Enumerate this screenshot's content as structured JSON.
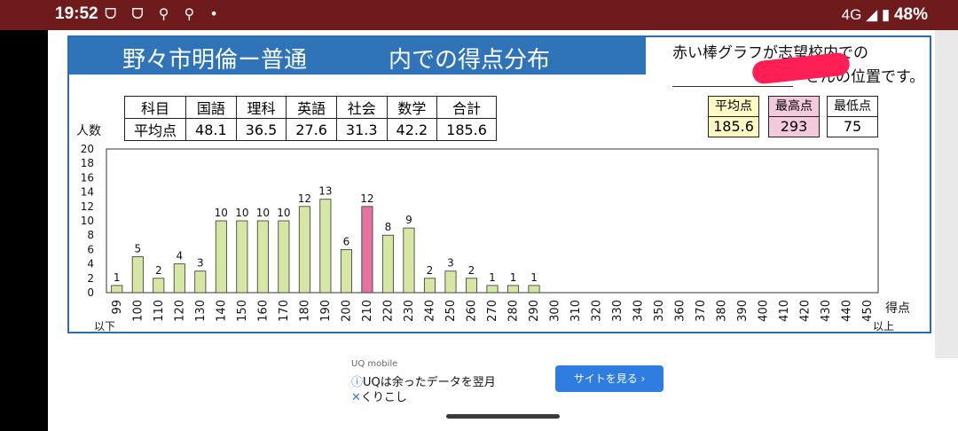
{
  "status": {
    "time": "19:52",
    "left_icons": "ᗜ ᗜ ⚲ ⚲ •",
    "network": "4G",
    "battery": "48%"
  },
  "header": {
    "title_school": "野々市明倫ー普通",
    "title_dist": "内での得点分布",
    "note_line1": "赤い棒グラフが志望校内での",
    "note_line2": "さんの位置です。"
  },
  "avg_table": {
    "header": [
      "科目",
      "国語",
      "理科",
      "英語",
      "社会",
      "数学",
      "合計"
    ],
    "row": [
      "平均点",
      "48.1",
      "36.5",
      "27.6",
      "31.3",
      "42.2",
      "185.6"
    ]
  },
  "stats": {
    "avg_label": "平均点",
    "avg_value": "185.6",
    "max_label": "最高点",
    "max_value": "293",
    "min_label": "最低点",
    "min_value": "75",
    "avg_color": "#fff9c2",
    "max_color": "#f3c9dc",
    "min_color": "#ffffff"
  },
  "chart_data": {
    "type": "bar",
    "ylabel": "人数",
    "xlabel": "得点",
    "ylim": [
      0,
      20
    ],
    "y_ticks": [
      "0",
      "2",
      "4",
      "6",
      "8",
      "10",
      "12",
      "14",
      "16",
      "18",
      "20"
    ],
    "categories": [
      "99",
      "100",
      "110",
      "120",
      "130",
      "140",
      "150",
      "160",
      "170",
      "180",
      "190",
      "200",
      "210",
      "220",
      "230",
      "240",
      "250",
      "260",
      "270",
      "280",
      "290",
      "300",
      "310",
      "320",
      "330",
      "340",
      "350",
      "360",
      "370",
      "380",
      "390",
      "400",
      "410",
      "420",
      "430",
      "440",
      "450"
    ],
    "values": [
      1,
      5,
      2,
      4,
      3,
      10,
      10,
      10,
      10,
      12,
      13,
      6,
      12,
      8,
      9,
      2,
      3,
      2,
      1,
      1,
      1,
      0,
      0,
      0,
      0,
      0,
      0,
      0,
      0,
      0,
      0,
      0,
      0,
      0,
      0,
      0,
      0
    ],
    "highlight_category": "210",
    "low_label": "以下",
    "high_label": "以上",
    "bar_color": "#d6e6a3",
    "highlight_color": "#e6739f"
  },
  "ad": {
    "source": "UQ mobile",
    "line1": "UQは余ったデータを翌月",
    "line2": "くりこし",
    "button": "サイトを見る ›"
  }
}
